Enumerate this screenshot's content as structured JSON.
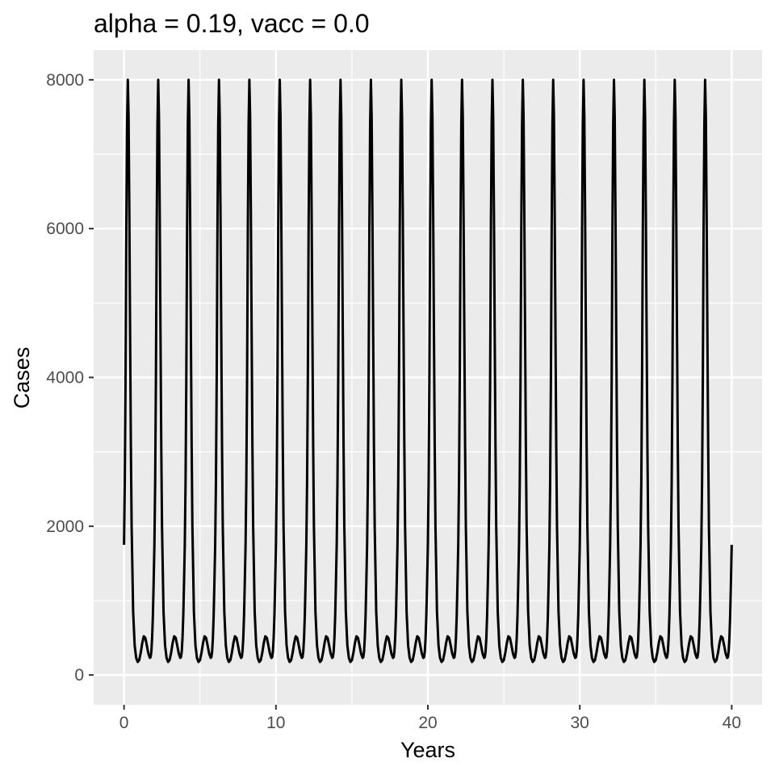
{
  "chart_data": {
    "type": "line",
    "title": "alpha = 0.19, vacc = 0.0",
    "xlabel": "Years",
    "ylabel": "Cases",
    "xlim": [
      -2,
      42
    ],
    "ylim": [
      -400,
      8400
    ],
    "x_ticks": [
      0,
      10,
      20,
      30,
      40
    ],
    "x_tick_labels": [
      "0",
      "10",
      "20",
      "30",
      "40"
    ],
    "y_ticks": [
      0,
      2000,
      4000,
      6000,
      8000
    ],
    "y_tick_labels": [
      "0",
      "2000",
      "4000",
      "6000",
      "8000"
    ],
    "grid": true,
    "series": [
      {
        "color": "#000000",
        "cycle": {
          "period_years": 2,
          "start_value": 1750,
          "end_value": 1750,
          "points": [
            [
              0.0,
              1750
            ],
            [
              0.05,
              2600
            ],
            [
              0.1,
              4000
            ],
            [
              0.15,
              6000
            ],
            [
              0.2,
              7400
            ],
            [
              0.25,
              8000
            ],
            [
              0.3,
              7500
            ],
            [
              0.35,
              6200
            ],
            [
              0.4,
              4600
            ],
            [
              0.45,
              3100
            ],
            [
              0.5,
              2000
            ],
            [
              0.6,
              850
            ],
            [
              0.7,
              400
            ],
            [
              0.8,
              230
            ],
            [
              0.9,
              175
            ],
            [
              1.0,
              200
            ],
            [
              1.1,
              300
            ],
            [
              1.2,
              430
            ],
            [
              1.3,
              520
            ],
            [
              1.4,
              500
            ],
            [
              1.5,
              400
            ],
            [
              1.6,
              290
            ],
            [
              1.7,
              230
            ],
            [
              1.75,
              240
            ],
            [
              1.8,
              320
            ],
            [
              1.85,
              500
            ],
            [
              1.9,
              800
            ],
            [
              1.95,
              1250
            ],
            [
              2.0,
              1750
            ]
          ]
        }
      }
    ]
  }
}
